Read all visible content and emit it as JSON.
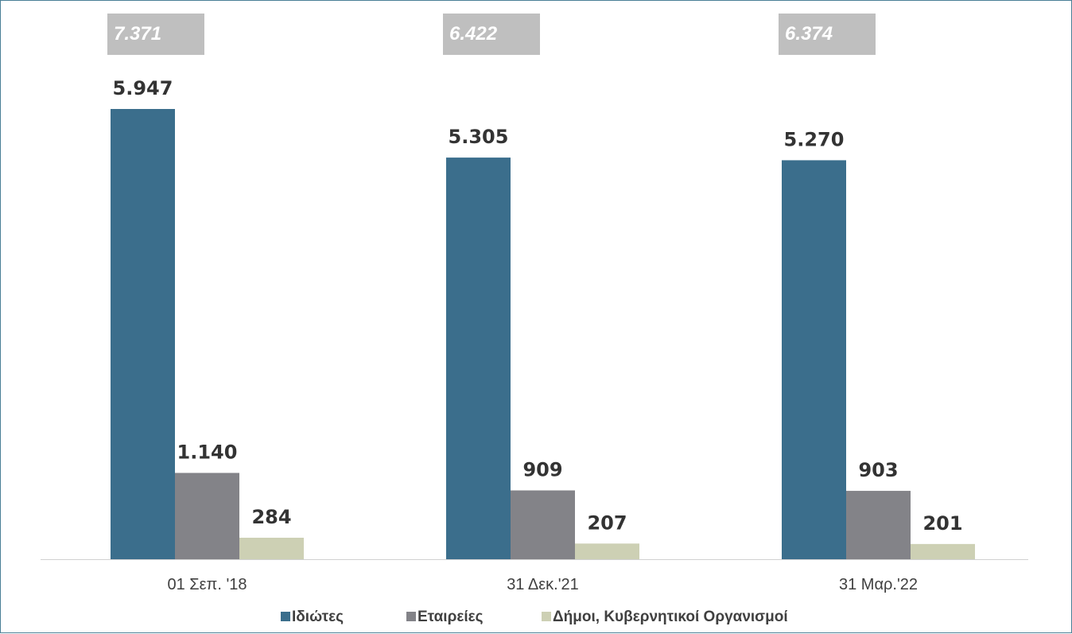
{
  "chart_data": {
    "type": "bar",
    "categories": [
      "01 Σεπ. '18",
      "31 Δεκ.'21",
      "31 Μαρ.'22"
    ],
    "series": [
      {
        "name": "Ιδιώτες",
        "values": [
          5947,
          5305,
          5270
        ],
        "labels": [
          "5.947",
          "5.305",
          "5.270"
        ],
        "color": "#3b6e8c"
      },
      {
        "name": "Εταιρείες",
        "values": [
          1140,
          909,
          903
        ],
        "labels": [
          "1.140",
          "909",
          "903"
        ],
        "color": "#838388"
      },
      {
        "name": "Δήμοι, Κυβερνητικοί Οργανισμοί",
        "values": [
          284,
          207,
          201
        ],
        "labels": [
          "284",
          "207",
          "201"
        ],
        "color": "#cdd0b4"
      }
    ],
    "totals": [
      7371,
      6422,
      6374
    ],
    "total_labels": [
      "7.371",
      "6.422",
      "6.374"
    ],
    "total_box_color": "#bfbfbf",
    "ylim": [
      0,
      6500
    ],
    "grid": false,
    "legend_position": "bottom",
    "title": "",
    "xlabel": "",
    "ylabel": ""
  }
}
